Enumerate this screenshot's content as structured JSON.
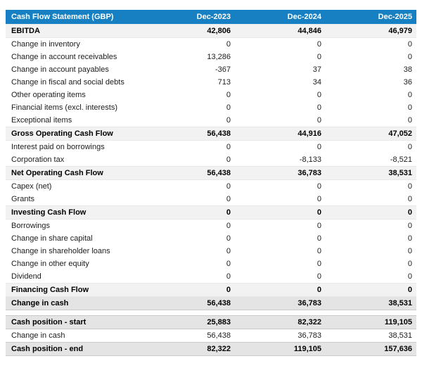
{
  "colors": {
    "header_bg": "#1780c2",
    "header_text": "#ffffff",
    "subtotal_row_bg": "#f2f2f2",
    "emphasis_row_bg": "#e4e4e4"
  },
  "chart_data": {
    "type": "table",
    "title": "Cash Flow Statement (GBP)",
    "columns": [
      "Dec-2023",
      "Dec-2024",
      "Dec-2025"
    ],
    "rows": [
      {
        "label": "EBITDA",
        "values": [
          "42,806",
          "44,846",
          "46,979"
        ],
        "style": "subtotal"
      },
      {
        "label": "Change in inventory",
        "values": [
          "0",
          "0",
          "0"
        ],
        "style": "normal"
      },
      {
        "label": "Change in account receivables",
        "values": [
          "13,286",
          "0",
          "0"
        ],
        "style": "normal"
      },
      {
        "label": "Change in account payables",
        "values": [
          "-367",
          "37",
          "38"
        ],
        "style": "normal"
      },
      {
        "label": "Change in fiscal and social debts",
        "values": [
          "713",
          "34",
          "36"
        ],
        "style": "normal"
      },
      {
        "label": "Other operating items",
        "values": [
          "0",
          "0",
          "0"
        ],
        "style": "normal"
      },
      {
        "label": "Financial items (excl. interests)",
        "values": [
          "0",
          "0",
          "0"
        ],
        "style": "normal"
      },
      {
        "label": "Exceptional items",
        "values": [
          "0",
          "0",
          "0"
        ],
        "style": "normal"
      },
      {
        "label": "Gross Operating Cash Flow",
        "values": [
          "56,438",
          "44,916",
          "47,052"
        ],
        "style": "subtotal"
      },
      {
        "label": "Interest paid on borrowings",
        "values": [
          "0",
          "0",
          "0"
        ],
        "style": "normal"
      },
      {
        "label": "Corporation tax",
        "values": [
          "0",
          "-8,133",
          "-8,521"
        ],
        "style": "normal"
      },
      {
        "label": "Net Operating Cash Flow",
        "values": [
          "56,438",
          "36,783",
          "38,531"
        ],
        "style": "subtotal"
      },
      {
        "label": "Capex (net)",
        "values": [
          "0",
          "0",
          "0"
        ],
        "style": "normal"
      },
      {
        "label": "Grants",
        "values": [
          "0",
          "0",
          "0"
        ],
        "style": "normal"
      },
      {
        "label": "Investing Cash Flow",
        "values": [
          "0",
          "0",
          "0"
        ],
        "style": "subtotal"
      },
      {
        "label": "Borrowings",
        "values": [
          "0",
          "0",
          "0"
        ],
        "style": "normal"
      },
      {
        "label": "Change in share capital",
        "values": [
          "0",
          "0",
          "0"
        ],
        "style": "normal"
      },
      {
        "label": "Change in shareholder loans",
        "values": [
          "0",
          "0",
          "0"
        ],
        "style": "normal"
      },
      {
        "label": "Change in other equity",
        "values": [
          "0",
          "0",
          "0"
        ],
        "style": "normal"
      },
      {
        "label": "Dividend",
        "values": [
          "0",
          "0",
          "0"
        ],
        "style": "normal"
      },
      {
        "label": "Financing Cash Flow",
        "values": [
          "0",
          "0",
          "0"
        ],
        "style": "subtotal"
      },
      {
        "label": "Change in cash",
        "values": [
          "56,438",
          "36,783",
          "38,531"
        ],
        "style": "emphasis"
      }
    ],
    "cash_position_rows": [
      {
        "label": "Cash position - start",
        "values": [
          "25,883",
          "82,322",
          "119,105"
        ],
        "style": "emphasis"
      },
      {
        "label": "Change in cash",
        "values": [
          "56,438",
          "36,783",
          "38,531"
        ],
        "style": "normal"
      },
      {
        "label": "Cash position - end",
        "values": [
          "82,322",
          "119,105",
          "157,636"
        ],
        "style": "emphasis"
      }
    ]
  }
}
